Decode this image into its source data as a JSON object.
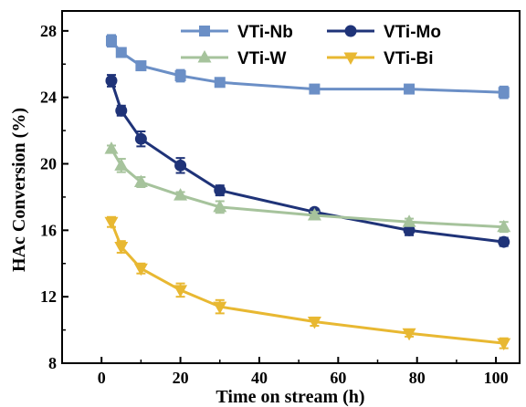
{
  "chart_data": {
    "type": "line",
    "xlabel": "Time on stream (h)",
    "ylabel": "HAc Conversion (%)",
    "xlim": [
      -10,
      106
    ],
    "ylim": [
      8,
      29.2
    ],
    "xticks": [
      0,
      20,
      40,
      60,
      80,
      100
    ],
    "yticks": [
      8,
      12,
      16,
      20,
      24,
      28
    ],
    "legend_position": "top-right",
    "grid": false,
    "series": [
      {
        "name": "VTi-Nb",
        "color": "#6b8fc6",
        "marker": "square",
        "x": [
          2.5,
          5,
          10,
          20,
          30,
          54,
          78,
          102
        ],
        "y": [
          27.4,
          26.7,
          25.9,
          25.3,
          24.9,
          24.5,
          24.5,
          24.3
        ],
        "err": [
          0.35,
          0.2,
          0.15,
          0.35,
          0.15,
          0.15,
          0.15,
          0.35
        ]
      },
      {
        "name": "VTi-Mo",
        "color": "#1f3378",
        "marker": "circle",
        "x": [
          2.5,
          5,
          10,
          20,
          30,
          54,
          78,
          102
        ],
        "y": [
          25.0,
          23.2,
          21.5,
          19.9,
          18.4,
          17.1,
          16.0,
          15.3
        ],
        "err": [
          0.35,
          0.3,
          0.45,
          0.45,
          0.3,
          0.2,
          0.3,
          0.25
        ]
      },
      {
        "name": "VTi-W",
        "color": "#a6c39c",
        "marker": "triangle-up",
        "x": [
          2.5,
          5,
          10,
          20,
          30,
          54,
          78,
          102
        ],
        "y": [
          20.9,
          19.9,
          18.9,
          18.1,
          17.4,
          16.9,
          16.5,
          16.2
        ],
        "err": [
          0.2,
          0.4,
          0.3,
          0.2,
          0.35,
          0.2,
          0.2,
          0.3
        ]
      },
      {
        "name": "VTi-Bi",
        "color": "#e8b832",
        "marker": "triangle-down",
        "x": [
          2.5,
          5,
          10,
          20,
          30,
          54,
          78,
          102
        ],
        "y": [
          16.5,
          15.0,
          13.7,
          12.4,
          11.4,
          10.5,
          9.8,
          9.2
        ],
        "err": [
          0.3,
          0.35,
          0.3,
          0.4,
          0.4,
          0.25,
          0.2,
          0.3
        ]
      }
    ]
  }
}
